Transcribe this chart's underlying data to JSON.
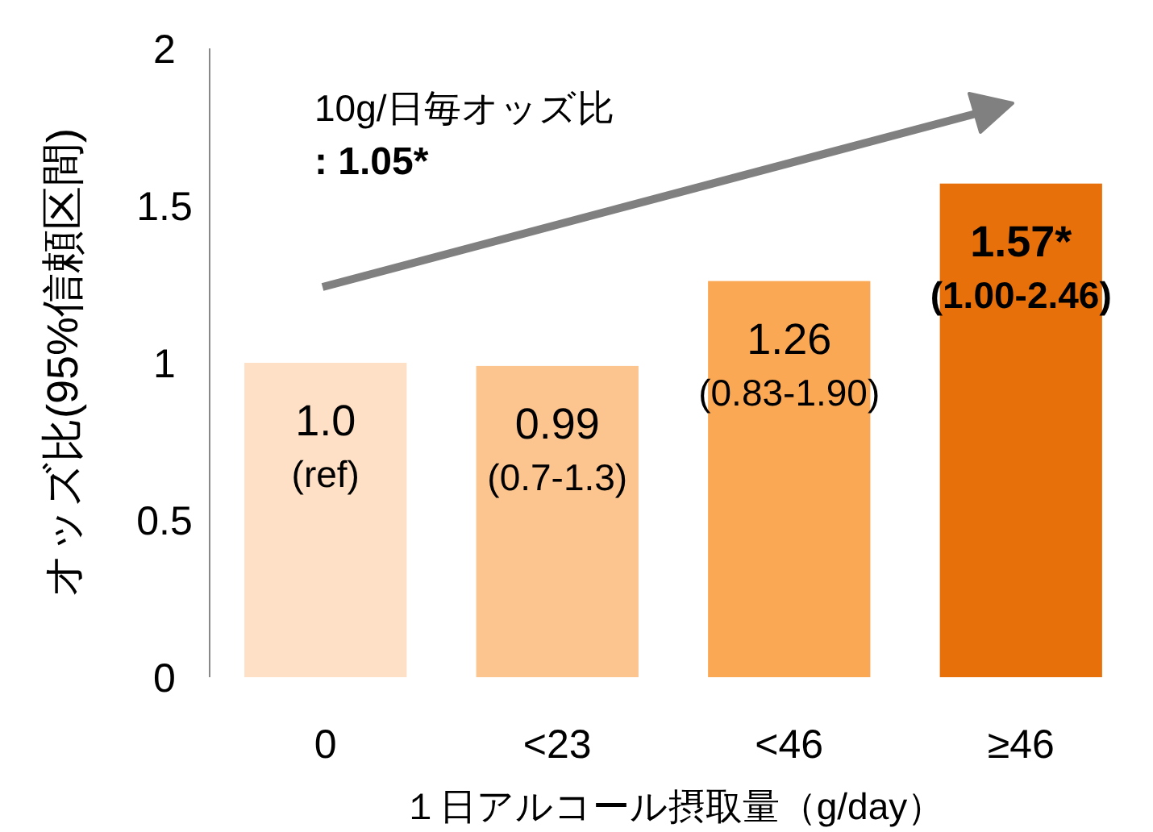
{
  "chart_data": {
    "type": "bar",
    "categories": [
      "0",
      "<23",
      "<46",
      "≥46"
    ],
    "values": [
      1.0,
      0.99,
      1.26,
      1.57
    ],
    "colors": [
      "#fde0c5",
      "#fcc48f",
      "#fba855",
      "#e8700a"
    ],
    "value_labels": [
      "1.0\n(ref)",
      "0.99\n(0.7-1.3)",
      "1.26\n(0.83-1.90)",
      "1.57*\n(1.00-2.46)"
    ],
    "ylim": [
      0,
      2
    ],
    "yticks": [
      0,
      0.5,
      1,
      1.5,
      2
    ],
    "grid": false,
    "xlabel": "１日アルコール摂取量（g/day）",
    "ylabel": "オッズ比(95%信頼区間)",
    "annotations": [
      "10g/日毎オッズ比\n: 1.05*"
    ]
  }
}
